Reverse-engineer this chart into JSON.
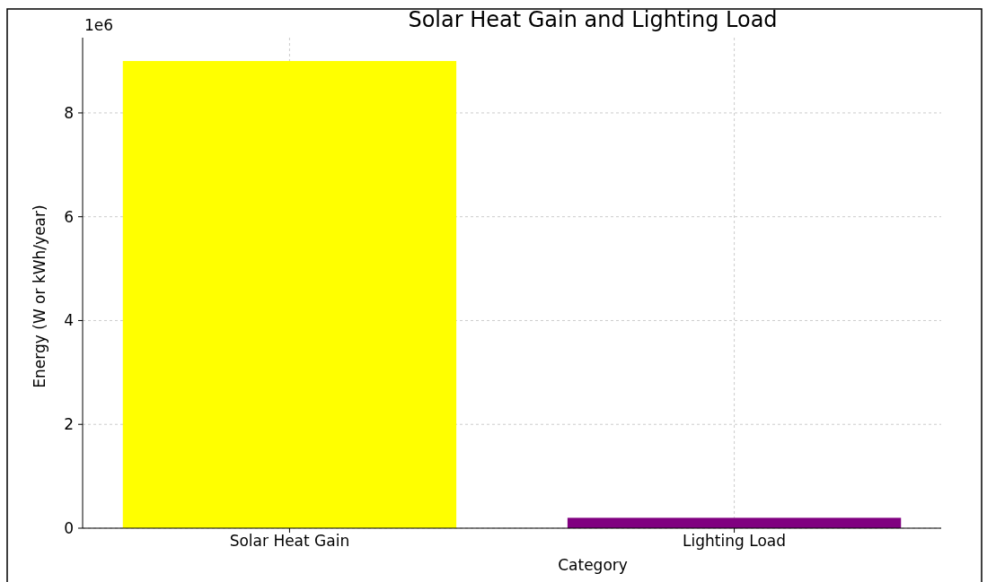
{
  "chart_data": {
    "type": "bar",
    "title": "Solar Heat Gain and Lighting Load",
    "xlabel": "Category",
    "ylabel": "Energy (W or kWh/year)",
    "categories": [
      "Solar Heat Gain",
      "Lighting Load"
    ],
    "values": [
      9.0,
      0.2
    ],
    "colors": [
      "#ffff00",
      "#800080"
    ],
    "ylim": [
      0,
      9.45
    ],
    "yticks": [
      0,
      2,
      4,
      6,
      8
    ],
    "annotations": [
      "1e6"
    ],
    "grid": true
  }
}
